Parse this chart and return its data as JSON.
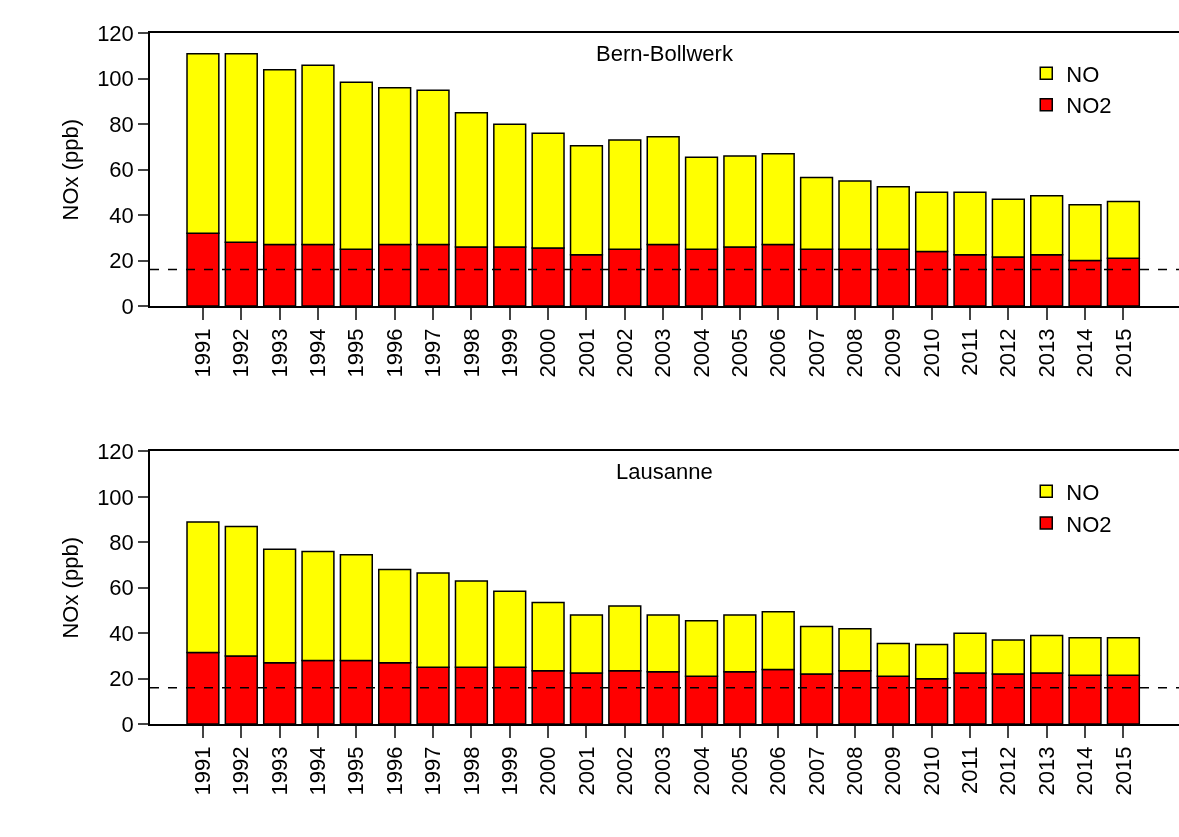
{
  "chart_data": [
    {
      "type": "bar",
      "stacked": true,
      "title": "Bern-Bollwerk",
      "ylabel": "NOx (ppb)",
      "categories": [
        "1991",
        "1992",
        "1993",
        "1994",
        "1995",
        "1996",
        "1997",
        "1998",
        "1999",
        "2000",
        "2001",
        "2002",
        "2003",
        "2004",
        "2005",
        "2006",
        "2007",
        "2008",
        "2009",
        "2010",
        "2011",
        "2012",
        "2013",
        "2014",
        "2015"
      ],
      "series": [
        {
          "name": "NO2",
          "color": "#ff0000",
          "values": [
            32,
            28,
            27,
            27,
            25,
            27,
            27,
            26,
            26,
            25.5,
            22.5,
            25,
            27,
            25,
            26,
            27,
            25,
            25,
            25,
            24,
            22.5,
            21.5,
            22.5,
            20,
            21
          ]
        },
        {
          "name": "NO",
          "color": "#ffff00",
          "values": [
            79,
            83,
            77,
            79,
            73.5,
            69,
            68,
            59,
            54,
            50.5,
            48,
            48,
            47.5,
            40.5,
            40,
            40,
            31.5,
            30,
            27.5,
            26,
            27.5,
            25.5,
            26,
            24.5,
            25
          ]
        }
      ],
      "ylim": [
        0,
        120
      ],
      "yticks": [
        0,
        20,
        40,
        60,
        80,
        100,
        120
      ],
      "legend": "top right",
      "ref_lines": [
        {
          "axis": "y",
          "value": 16,
          "color": "#000000",
          "line_style": "dashed"
        }
      ]
    },
    {
      "type": "bar",
      "stacked": true,
      "title": "Lausanne",
      "ylabel": "NOx (ppb)",
      "categories": [
        "1991",
        "1992",
        "1993",
        "1994",
        "1995",
        "1996",
        "1997",
        "1998",
        "1999",
        "2000",
        "2001",
        "2002",
        "2003",
        "2004",
        "2005",
        "2006",
        "2007",
        "2008",
        "2009",
        "2010",
        "2011",
        "2012",
        "2013",
        "2014",
        "2015"
      ],
      "series": [
        {
          "name": "NO2",
          "color": "#ff0000",
          "values": [
            31.5,
            30,
            27,
            28,
            28,
            27,
            25,
            25,
            25,
            23.5,
            22.5,
            23.5,
            23,
            21,
            23,
            24,
            22,
            23.5,
            21,
            20,
            22.5,
            22,
            22.5,
            21.5,
            21.5
          ]
        },
        {
          "name": "NO",
          "color": "#ffff00",
          "values": [
            57.5,
            57,
            50,
            48,
            46.5,
            41,
            41.5,
            38,
            33.5,
            30,
            25.5,
            28.5,
            25,
            24.5,
            25,
            25.5,
            21,
            18.5,
            14.5,
            15,
            17.5,
            15,
            16.5,
            16.5,
            16.5
          ]
        }
      ],
      "ylim": [
        0,
        120
      ],
      "yticks": [
        0,
        20,
        40,
        60,
        80,
        100,
        120
      ],
      "legend": "top right",
      "ref_lines": [
        {
          "axis": "y",
          "value": 16,
          "color": "#000000",
          "line_style": "dashed"
        }
      ]
    }
  ]
}
